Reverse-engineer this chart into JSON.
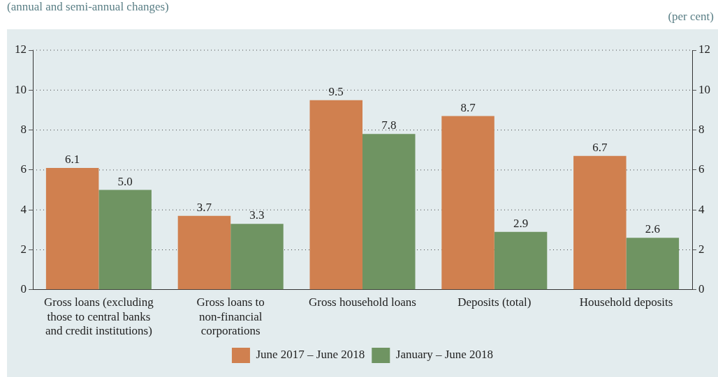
{
  "chart_data": {
    "type": "bar",
    "subtitle": "(annual and semi-annual changes)",
    "y2label": "(per cent)",
    "categories": [
      "Gross loans (excluding those to central banks and credit institutions)",
      "Gross loans to non-financial corporations",
      "Gross household loans",
      "Deposits (total)",
      "Household deposits"
    ],
    "series": [
      {
        "name": "June 2017 – June 2018",
        "color": "#d0804f",
        "values": [
          6.1,
          3.7,
          9.5,
          8.7,
          6.7
        ],
        "value_labels": [
          "6.1",
          "3.7",
          "9.5",
          "8.7",
          "6.7"
        ]
      },
      {
        "name": "January – June 2018",
        "color": "#6f9462",
        "values": [
          5.0,
          3.3,
          7.8,
          2.9,
          2.6
        ],
        "value_labels": [
          "5.0",
          "3.3",
          "7.8",
          "2.9",
          "2.6"
        ]
      }
    ],
    "ylim": [
      0,
      12
    ],
    "yticks": [
      0,
      2,
      4,
      6,
      8,
      10,
      12
    ],
    "y2lim": [
      0,
      12
    ],
    "y2ticks": [
      0,
      2,
      4,
      6,
      8,
      10,
      12
    ],
    "grid": "y",
    "legend": "bottom"
  }
}
